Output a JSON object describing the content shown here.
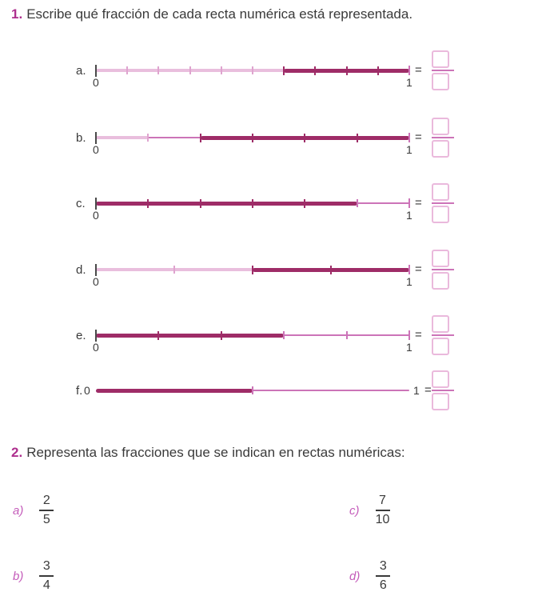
{
  "colors": {
    "dark_segment": "#9e2c67",
    "light_segment": "#e9bedd",
    "mid_pink": "#cc74b8",
    "box_border": "#eab9dc",
    "section_number": "#ae2f8e",
    "item_letter": "#c45cba",
    "text": "#3a3a3a"
  },
  "section1": {
    "number": "1.",
    "title": "Escribe qué fracción de cada recta numérica está representada.",
    "equals_sign": "=",
    "lines": [
      {
        "label": "a.",
        "start_label": "0",
        "end_label": "1",
        "divisions": 10,
        "inline_labels": false,
        "segments": [
          {
            "from": 0,
            "to": 0.6,
            "style": "light"
          },
          {
            "from": 0.6,
            "to": 1,
            "style": "dark"
          }
        ]
      },
      {
        "label": "b.",
        "start_label": "0",
        "end_label": "1",
        "divisions": 6,
        "inline_labels": false,
        "segments": [
          {
            "from": 0,
            "to": 0.1667,
            "style": "light"
          },
          {
            "from": 0.1667,
            "to": 0.3333,
            "style": "thin"
          },
          {
            "from": 0.3333,
            "to": 1,
            "style": "dark"
          }
        ]
      },
      {
        "label": "c.",
        "start_label": "0",
        "end_label": "1",
        "divisions": 6,
        "inline_labels": false,
        "segments": [
          {
            "from": 0,
            "to": 0.8333,
            "style": "dark"
          },
          {
            "from": 0.8333,
            "to": 1,
            "style": "thin"
          }
        ]
      },
      {
        "label": "d.",
        "start_label": "0",
        "end_label": "1",
        "divisions": 4,
        "inline_labels": false,
        "segments": [
          {
            "from": 0,
            "to": 0.5,
            "style": "light"
          },
          {
            "from": 0.5,
            "to": 1,
            "style": "dark"
          }
        ]
      },
      {
        "label": "e.",
        "start_label": "0",
        "end_label": "1",
        "divisions": 5,
        "inline_labels": false,
        "segments": [
          {
            "from": 0,
            "to": 0.6,
            "style": "dark"
          },
          {
            "from": 0.6,
            "to": 1,
            "style": "thin"
          }
        ]
      },
      {
        "label": "f.",
        "start_label": "0",
        "end_label": "1",
        "divisions": 2,
        "inline_labels": true,
        "segments": [
          {
            "from": 0,
            "to": 0.5,
            "style": "dark"
          },
          {
            "from": 0.5,
            "to": 1,
            "style": "thin"
          }
        ]
      }
    ]
  },
  "section2": {
    "number": "2.",
    "title": "Representa las fracciones que se indican en rectas numéricas:",
    "items": [
      {
        "letter": "a)",
        "numerator": "2",
        "denominator": "5"
      },
      {
        "letter": "b)",
        "numerator": "3",
        "denominator": "4"
      },
      {
        "letter": "c)",
        "numerator": "7",
        "denominator": "10"
      },
      {
        "letter": "d)",
        "numerator": "3",
        "denominator": "6"
      }
    ]
  }
}
